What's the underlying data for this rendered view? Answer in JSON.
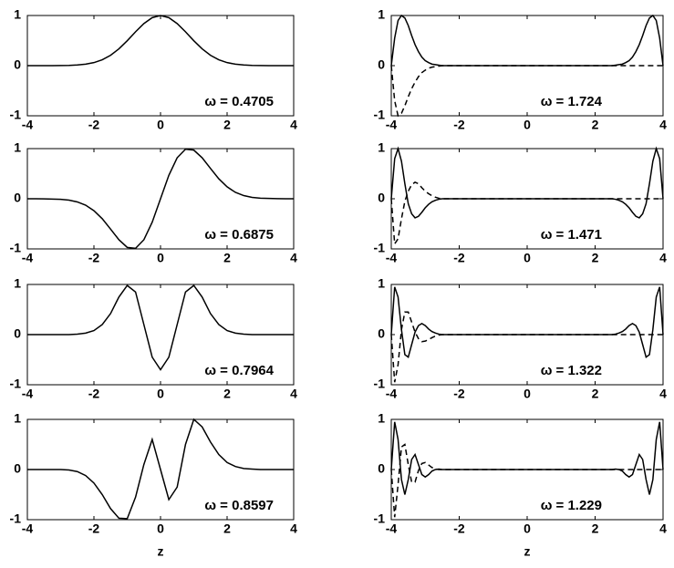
{
  "chart_data": [
    {
      "type": "line",
      "annotation": "ω = 0.4705",
      "x": [
        -4,
        -3.75,
        -3.5,
        -3.25,
        -3,
        -2.75,
        -2.5,
        -2.25,
        -2,
        -1.75,
        -1.5,
        -1.25,
        -1,
        -0.75,
        -0.5,
        -0.25,
        0,
        0.25,
        0.5,
        0.75,
        1,
        1.25,
        1.5,
        1.75,
        2,
        2.25,
        2.5,
        2.75,
        3,
        3.25,
        3.5,
        3.75,
        4
      ],
      "series": [
        {
          "color": "#000000",
          "linestyle": "solid",
          "values": [
            0,
            0,
            0,
            0.001,
            0.002,
            0.005,
            0.013,
            0.029,
            0.061,
            0.117,
            0.207,
            0.335,
            0.497,
            0.675,
            0.839,
            0.957,
            1,
            0.957,
            0.839,
            0.675,
            0.497,
            0.335,
            0.207,
            0.117,
            0.061,
            0.029,
            0.013,
            0.005,
            0.002,
            0.001,
            0,
            0,
            0
          ]
        }
      ],
      "xlim": [
        -4,
        4
      ],
      "ylim": [
        -1,
        1
      ],
      "xticks": [
        -4,
        -2,
        0,
        2,
        4
      ],
      "yticks": [
        -1,
        0,
        1
      ]
    },
    {
      "type": "line",
      "annotation": "ω = 1.724",
      "x": [
        -4,
        -3.9,
        -3.8,
        -3.7,
        -3.6,
        -3.5,
        -3.4,
        -3.3,
        -3.2,
        -3.1,
        -3,
        -2.9,
        -2.8,
        -2.7,
        -2.6,
        -2.5,
        -2,
        -1.5,
        -1,
        -0.5,
        0,
        0.5,
        1,
        1.5,
        2,
        2.5,
        2.6,
        2.7,
        2.8,
        2.9,
        3,
        3.1,
        3.2,
        3.3,
        3.4,
        3.5,
        3.6,
        3.7,
        3.8,
        3.9,
        4
      ],
      "series": [
        {
          "color": "#000000",
          "linestyle": "solid",
          "values": [
            0,
            0.55,
            0.9,
            1,
            0.95,
            0.8,
            0.6,
            0.42,
            0.28,
            0.17,
            0.1,
            0.06,
            0.03,
            0.02,
            0.01,
            0,
            0,
            0,
            0,
            0,
            0,
            0,
            0,
            0,
            0,
            0,
            0.01,
            0.02,
            0.03,
            0.06,
            0.1,
            0.17,
            0.28,
            0.42,
            0.6,
            0.8,
            0.95,
            1,
            0.9,
            0.55,
            0
          ]
        },
        {
          "color": "#000000",
          "linestyle": "dashed",
          "values": [
            0,
            -0.7,
            -1,
            -0.95,
            -0.8,
            -0.62,
            -0.46,
            -0.33,
            -0.22,
            -0.14,
            -0.09,
            -0.05,
            -0.03,
            -0.02,
            -0.01,
            0,
            0,
            0,
            0,
            0,
            0,
            0,
            0,
            0,
            0,
            0,
            0,
            0,
            0,
            0,
            0,
            0,
            0,
            0,
            0,
            0,
            0,
            0,
            0,
            0,
            0
          ]
        }
      ],
      "xlim": [
        -4,
        4
      ],
      "ylim": [
        -1,
        1
      ],
      "xticks": [
        -4,
        -2,
        0,
        2,
        4
      ],
      "yticks": [
        -1,
        0,
        1
      ]
    },
    {
      "type": "line",
      "annotation": "ω = 0.6875",
      "x": [
        -4,
        -3.75,
        -3.5,
        -3.25,
        -3,
        -2.75,
        -2.5,
        -2.25,
        -2,
        -1.75,
        -1.5,
        -1.25,
        -1,
        -0.75,
        -0.5,
        -0.25,
        0,
        0.25,
        0.5,
        0.75,
        1,
        1.25,
        1.5,
        1.75,
        2,
        2.25,
        2.5,
        2.75,
        3,
        3.25,
        3.5,
        3.75,
        4
      ],
      "series": [
        {
          "color": "#000000",
          "linestyle": "solid",
          "values": [
            0,
            0,
            -0.002,
            -0.006,
            -0.012,
            -0.027,
            -0.063,
            -0.127,
            -0.238,
            -0.399,
            -0.606,
            -0.817,
            -0.97,
            -0.988,
            -0.818,
            -0.467,
            0,
            0.467,
            0.818,
            0.988,
            0.97,
            0.817,
            0.606,
            0.399,
            0.238,
            0.127,
            0.063,
            0.027,
            0.012,
            0.006,
            0.002,
            0,
            0
          ]
        }
      ],
      "xlim": [
        -4,
        4
      ],
      "ylim": [
        -1,
        1
      ],
      "xticks": [
        -4,
        -2,
        0,
        2,
        4
      ],
      "yticks": [
        -1,
        0,
        1
      ]
    },
    {
      "type": "line",
      "annotation": "ω = 1.471",
      "x": [
        -4,
        -3.9,
        -3.8,
        -3.7,
        -3.6,
        -3.5,
        -3.4,
        -3.3,
        -3.2,
        -3.1,
        -3,
        -2.9,
        -2.8,
        -2.7,
        -2.6,
        -2.5,
        -2,
        -1.5,
        -1,
        -0.5,
        0,
        0.5,
        1,
        1.5,
        2,
        2.5,
        2.6,
        2.7,
        2.8,
        2.9,
        3,
        3.1,
        3.2,
        3.3,
        3.4,
        3.5,
        3.6,
        3.7,
        3.8,
        3.9,
        4
      ],
      "series": [
        {
          "color": "#000000",
          "linestyle": "solid",
          "values": [
            0,
            0.8,
            1,
            0.75,
            0.3,
            -0.1,
            -0.3,
            -0.38,
            -0.35,
            -0.27,
            -0.18,
            -0.11,
            -0.06,
            -0.03,
            -0.01,
            0,
            0,
            0,
            0,
            0,
            0,
            0,
            0,
            0,
            0,
            0,
            -0.01,
            -0.03,
            -0.06,
            -0.11,
            -0.18,
            -0.27,
            -0.35,
            -0.38,
            -0.3,
            -0.1,
            0.3,
            0.75,
            1,
            0.8,
            0
          ]
        },
        {
          "color": "#000000",
          "linestyle": "dashed",
          "values": [
            0,
            -0.9,
            -0.8,
            -0.4,
            -0.05,
            0.15,
            0.28,
            0.33,
            0.3,
            0.22,
            0.15,
            0.1,
            0.06,
            0.03,
            0.01,
            0,
            0,
            0,
            0,
            0,
            0,
            0,
            0,
            0,
            0,
            0,
            0,
            0,
            0,
            0,
            0,
            0,
            0,
            0,
            0,
            0,
            0,
            0,
            0,
            0,
            0
          ]
        }
      ],
      "xlim": [
        -4,
        4
      ],
      "ylim": [
        -1,
        1
      ],
      "xticks": [
        -4,
        -2,
        0,
        2,
        4
      ],
      "yticks": [
        -1,
        0,
        1
      ]
    },
    {
      "type": "line",
      "annotation": "ω = 0.7964",
      "x": [
        -4,
        -3.75,
        -3.5,
        -3.25,
        -3,
        -2.75,
        -2.5,
        -2.25,
        -2,
        -1.75,
        -1.5,
        -1.25,
        -1,
        -0.75,
        -0.5,
        -0.25,
        0,
        0.25,
        0.5,
        0.75,
        1,
        1.25,
        1.5,
        1.75,
        2,
        2.25,
        2.5,
        2.75,
        3,
        3.25,
        3.5,
        3.75,
        4
      ],
      "series": [
        {
          "color": "#000000",
          "linestyle": "solid",
          "values": [
            0,
            0,
            0,
            0,
            0,
            0,
            0.01,
            0.03,
            0.08,
            0.2,
            0.42,
            0.75,
            0.98,
            0.85,
            0.2,
            -0.45,
            -0.7,
            -0.45,
            0.2,
            0.85,
            0.98,
            0.75,
            0.42,
            0.2,
            0.08,
            0.03,
            0.01,
            0,
            0,
            0,
            0,
            0,
            0
          ]
        }
      ],
      "xlim": [
        -4,
        4
      ],
      "ylim": [
        -1,
        1
      ],
      "xticks": [
        -4,
        -2,
        0,
        2,
        4
      ],
      "yticks": [
        -1,
        0,
        1
      ]
    },
    {
      "type": "line",
      "annotation": "ω = 1.322",
      "x": [
        -4,
        -3.9,
        -3.8,
        -3.7,
        -3.6,
        -3.5,
        -3.4,
        -3.3,
        -3.2,
        -3.1,
        -3,
        -2.9,
        -2.8,
        -2.7,
        -2.6,
        -2.5,
        -2,
        -1.5,
        -1,
        -0.5,
        0,
        0.5,
        1,
        1.5,
        2,
        2.5,
        2.6,
        2.7,
        2.8,
        2.9,
        3,
        3.1,
        3.2,
        3.3,
        3.4,
        3.5,
        3.6,
        3.7,
        3.8,
        3.9,
        4
      ],
      "series": [
        {
          "color": "#000000",
          "linestyle": "solid",
          "values": [
            0,
            0.95,
            0.75,
            0.1,
            -0.4,
            -0.45,
            -0.2,
            0.05,
            0.18,
            0.22,
            0.18,
            0.11,
            0.06,
            0.03,
            0.01,
            0,
            0,
            0,
            0,
            0,
            0,
            0,
            0,
            0,
            0,
            0,
            0.01,
            0.03,
            0.06,
            0.11,
            0.18,
            0.22,
            0.18,
            0.05,
            -0.2,
            -0.45,
            -0.4,
            0.1,
            0.75,
            0.95,
            0
          ]
        },
        {
          "color": "#000000",
          "linestyle": "dashed",
          "values": [
            0,
            -0.95,
            -0.6,
            0.1,
            0.45,
            0.45,
            0.25,
            0.05,
            -0.08,
            -0.14,
            -0.13,
            -0.1,
            -0.06,
            -0.03,
            -0.01,
            0,
            0,
            0,
            0,
            0,
            0,
            0,
            0,
            0,
            0,
            0,
            0,
            0,
            0,
            0,
            0,
            0,
            0,
            0,
            0,
            0,
            0,
            0,
            0,
            0,
            0
          ]
        }
      ],
      "xlim": [
        -4,
        4
      ],
      "ylim": [
        -1,
        1
      ],
      "xticks": [
        -4,
        -2,
        0,
        2,
        4
      ],
      "yticks": [
        -1,
        0,
        1
      ]
    },
    {
      "type": "line",
      "annotation": "ω = 0.8597",
      "xlabel": "z",
      "x": [
        -4,
        -3.75,
        -3.5,
        -3.25,
        -3,
        -2.75,
        -2.5,
        -2.25,
        -2,
        -1.75,
        -1.5,
        -1.25,
        -1,
        -0.75,
        -0.5,
        -0.25,
        0,
        0.25,
        0.5,
        0.75,
        1,
        1.25,
        1.5,
        1.75,
        2,
        2.25,
        2.5,
        2.75,
        3,
        3.25,
        3.5,
        3.75,
        4
      ],
      "series": [
        {
          "color": "#000000",
          "linestyle": "solid",
          "values": [
            0,
            0,
            0,
            0,
            0,
            -0.01,
            -0.04,
            -0.12,
            -0.27,
            -0.5,
            -0.78,
            -0.97,
            -0.98,
            -0.55,
            0.1,
            0.6,
            0,
            -0.6,
            -0.35,
            0.5,
            1,
            0.85,
            0.55,
            0.3,
            0.14,
            0.06,
            0.02,
            0.01,
            0,
            0,
            0,
            0,
            0
          ]
        }
      ],
      "xlim": [
        -4,
        4
      ],
      "ylim": [
        -1,
        1
      ],
      "xticks": [
        -4,
        -2,
        0,
        2,
        4
      ],
      "yticks": [
        -1,
        0,
        1
      ]
    },
    {
      "type": "line",
      "annotation": "ω = 1.229",
      "xlabel": "z",
      "x": [
        -4,
        -3.9,
        -3.8,
        -3.7,
        -3.6,
        -3.5,
        -3.4,
        -3.3,
        -3.2,
        -3.1,
        -3,
        -2.9,
        -2.8,
        -2.7,
        -2.6,
        -2.5,
        -2,
        -1.5,
        -1,
        -0.5,
        0,
        0.5,
        1,
        1.5,
        2,
        2.5,
        2.6,
        2.7,
        2.8,
        2.9,
        3,
        3.1,
        3.2,
        3.3,
        3.4,
        3.5,
        3.6,
        3.7,
        3.8,
        3.9,
        4
      ],
      "series": [
        {
          "color": "#000000",
          "linestyle": "solid",
          "values": [
            0,
            0.95,
            0.6,
            -0.2,
            -0.5,
            -0.2,
            0.2,
            0.3,
            0.1,
            -0.1,
            -0.15,
            -0.1,
            -0.03,
            0,
            0.01,
            0,
            0,
            0,
            0,
            0,
            0,
            0,
            0,
            0,
            0,
            0,
            0.01,
            0,
            -0.03,
            -0.1,
            -0.15,
            -0.1,
            0.1,
            0.3,
            0.2,
            -0.2,
            -0.5,
            -0.2,
            0.6,
            0.95,
            0
          ]
        },
        {
          "color": "#000000",
          "linestyle": "dashed",
          "values": [
            0,
            -0.95,
            -0.3,
            0.45,
            0.5,
            0.1,
            -0.25,
            -0.25,
            -0.02,
            0.12,
            0.14,
            0.09,
            0.04,
            0.01,
            0,
            0,
            0,
            0,
            0,
            0,
            0,
            0,
            0,
            0,
            0,
            0,
            0,
            0,
            0,
            0,
            0,
            0,
            0,
            0,
            0,
            0,
            0,
            0,
            0,
            0,
            0
          ]
        }
      ],
      "xlim": [
        -4,
        4
      ],
      "ylim": [
        -1,
        1
      ],
      "xticks": [
        -4,
        -2,
        0,
        2,
        4
      ],
      "yticks": [
        -1,
        0,
        1
      ]
    }
  ]
}
